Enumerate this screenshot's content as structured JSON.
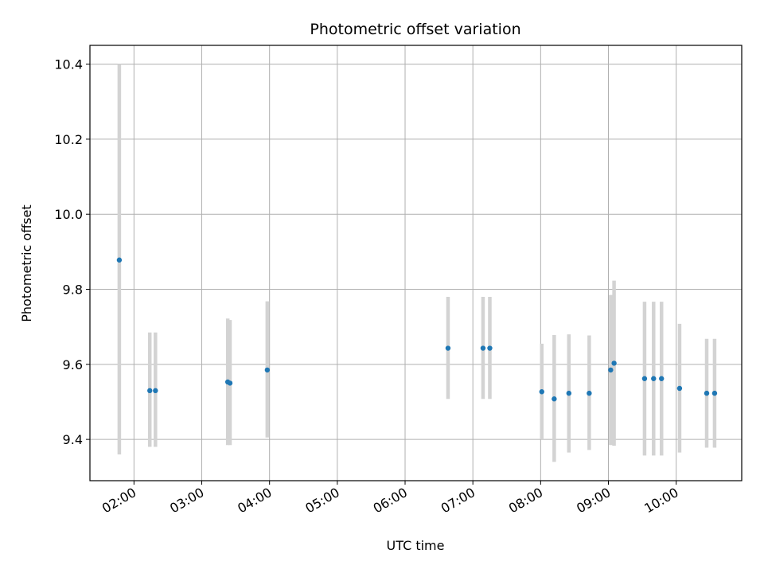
{
  "chart_data": {
    "type": "scatter",
    "title": "Photometric offset variation",
    "xlabel": "UTC time",
    "ylabel": "Photometric offset",
    "x_axis": "time",
    "xlim": [
      "01:21",
      "10:58"
    ],
    "ylim": [
      9.29,
      10.45
    ],
    "x_ticks": [
      "02:00",
      "03:00",
      "04:00",
      "05:00",
      "06:00",
      "07:00",
      "08:00",
      "09:00",
      "10:00"
    ],
    "y_ticks": [
      9.4,
      9.6,
      9.8,
      10.0,
      10.2,
      10.4
    ],
    "y_tick_labels": [
      "9.4",
      "9.6",
      "9.8",
      "10.0",
      "10.2",
      "10.4"
    ],
    "grid": true,
    "colors": {
      "point": "#1f77b4",
      "errorbar": "#d3d3d3",
      "grid": "#b0b0b0"
    },
    "points": [
      {
        "t": "01:47",
        "y": 9.878,
        "ymin": 9.36,
        "ymax": 10.4
      },
      {
        "t": "02:14",
        "y": 9.53,
        "ymin": 9.38,
        "ymax": 9.685
      },
      {
        "t": "02:19",
        "y": 9.53,
        "ymin": 9.38,
        "ymax": 9.685
      },
      {
        "t": "03:23",
        "y": 9.553,
        "ymin": 9.385,
        "ymax": 9.722
      },
      {
        "t": "03:25",
        "y": 9.55,
        "ymin": 9.385,
        "ymax": 9.718
      },
      {
        "t": "03:58",
        "y": 9.585,
        "ymin": 9.405,
        "ymax": 9.768
      },
      {
        "t": "06:38",
        "y": 9.643,
        "ymin": 9.508,
        "ymax": 9.78
      },
      {
        "t": "07:09",
        "y": 9.643,
        "ymin": 9.508,
        "ymax": 9.78
      },
      {
        "t": "07:15",
        "y": 9.643,
        "ymin": 9.508,
        "ymax": 9.78
      },
      {
        "t": "08:01",
        "y": 9.527,
        "ymin": 9.4,
        "ymax": 9.655
      },
      {
        "t": "08:12",
        "y": 9.508,
        "ymin": 9.34,
        "ymax": 9.678
      },
      {
        "t": "08:25",
        "y": 9.523,
        "ymin": 9.365,
        "ymax": 9.68
      },
      {
        "t": "08:43",
        "y": 9.523,
        "ymin": 9.372,
        "ymax": 9.677
      },
      {
        "t": "09:02",
        "y": 9.585,
        "ymin": 9.385,
        "ymax": 9.785
      },
      {
        "t": "09:05",
        "y": 9.603,
        "ymin": 9.383,
        "ymax": 9.823
      },
      {
        "t": "09:32",
        "y": 9.562,
        "ymin": 9.357,
        "ymax": 9.767
      },
      {
        "t": "09:40",
        "y": 9.562,
        "ymin": 9.357,
        "ymax": 9.767
      },
      {
        "t": "09:47",
        "y": 9.562,
        "ymin": 9.357,
        "ymax": 9.767
      },
      {
        "t": "10:03",
        "y": 9.536,
        "ymin": 9.365,
        "ymax": 9.708
      },
      {
        "t": "10:27",
        "y": 9.523,
        "ymin": 9.378,
        "ymax": 9.668
      },
      {
        "t": "10:34",
        "y": 9.523,
        "ymin": 9.378,
        "ymax": 9.668
      }
    ]
  }
}
